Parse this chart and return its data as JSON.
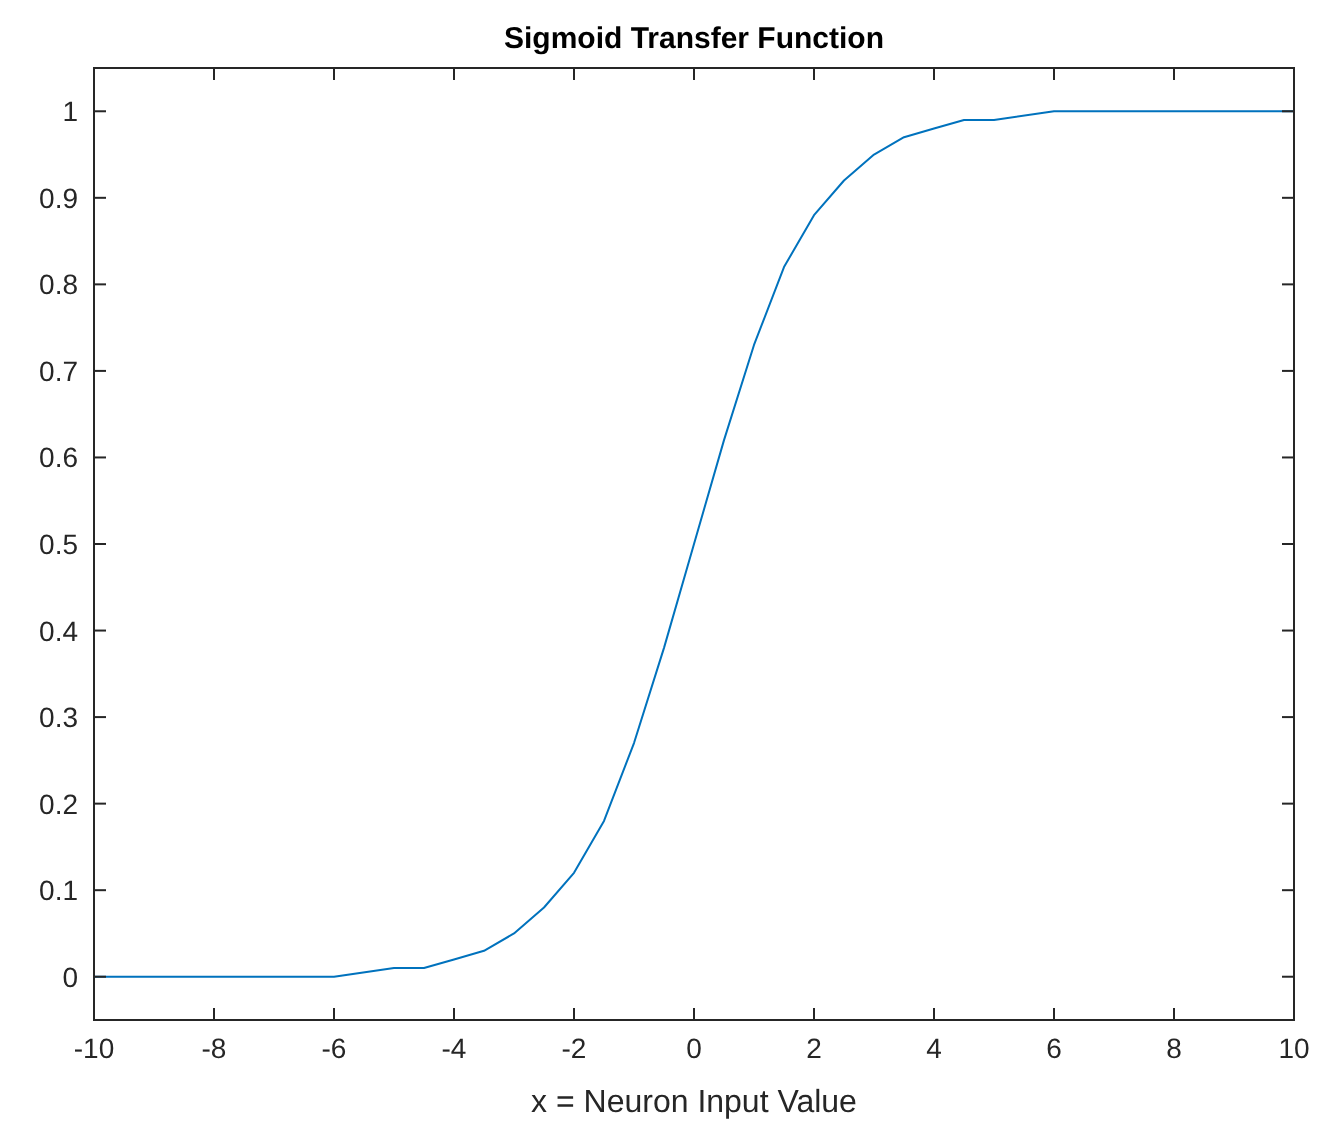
{
  "chart_data": {
    "type": "line",
    "title": "Sigmoid Transfer Function",
    "xlabel": "x = Neuron Input Value",
    "x": [
      -10,
      -8,
      -7,
      -6,
      -5,
      -4.5,
      -4,
      -3.5,
      -3,
      -2.5,
      -2,
      -1.5,
      -1,
      -0.5,
      0,
      0.5,
      1,
      1.5,
      2,
      2.5,
      3,
      3.5,
      4,
      4.5,
      5,
      6,
      7,
      8,
      10
    ],
    "series": [
      {
        "color": "#0072bd",
        "values": [
          0,
          0,
          0,
          0,
          0.01,
          0.01,
          0.02,
          0.03,
          0.05,
          0.08,
          0.12,
          0.18,
          0.27,
          0.38,
          0.5,
          0.62,
          0.73,
          0.82,
          0.88,
          0.92,
          0.95,
          0.97,
          0.98,
          0.99,
          0.99,
          1,
          1,
          1,
          1
        ]
      }
    ],
    "xlim": [
      -10,
      10
    ],
    "xticks": [
      -10,
      -8,
      -6,
      -4,
      -2,
      0,
      2,
      4,
      6,
      8,
      10
    ],
    "ylim": [
      -0.05,
      1.05
    ],
    "yticks": [
      0,
      0.1,
      0.2,
      0.3,
      0.4,
      0.5,
      0.6,
      0.7,
      0.8,
      0.9,
      1
    ],
    "grid": false,
    "marker": "none",
    "line_style": "solid"
  }
}
